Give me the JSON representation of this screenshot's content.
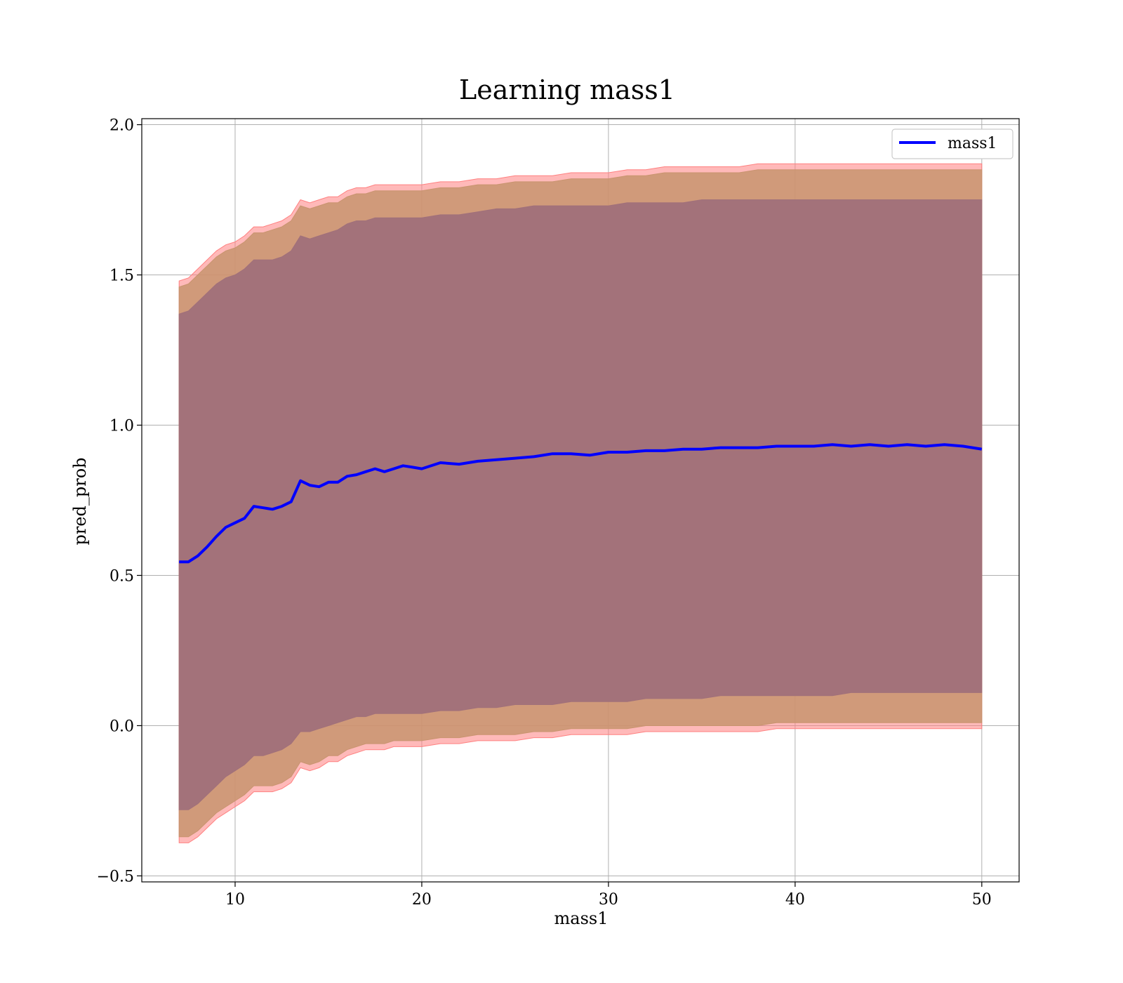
{
  "chart_data": {
    "type": "line",
    "title": "Learning mass1",
    "xlabel": "mass1",
    "ylabel": "pred_prob",
    "xlim": [
      5,
      52
    ],
    "ylim": [
      -0.52,
      2.02
    ],
    "xticks": [
      10,
      20,
      30,
      40,
      50
    ],
    "xtick_labels": [
      "10",
      "20",
      "30",
      "40",
      "50"
    ],
    "yticks": [
      -0.5,
      0.0,
      0.5,
      1.0,
      1.5,
      2.0
    ],
    "ytick_labels": [
      "−0.5",
      "0.0",
      "0.5",
      "1.0",
      "1.5",
      "2.0"
    ],
    "grid": true,
    "legend": {
      "position": "top-right",
      "entries": [
        "mass1"
      ]
    },
    "colors": {
      "line": "#0000ff",
      "band_outer": "#ff8080",
      "band_middle": "#c8946f",
      "band_inner": "#a0707a",
      "grid": "#b0b0b0"
    },
    "x": [
      7.0,
      7.5,
      8.0,
      8.5,
      9.0,
      9.5,
      10.0,
      10.5,
      11.0,
      11.5,
      12.0,
      12.5,
      13.0,
      13.5,
      14.0,
      14.5,
      15.0,
      15.5,
      16.0,
      16.5,
      17.0,
      17.5,
      18.0,
      18.5,
      19.0,
      19.5,
      20.0,
      21.0,
      22.0,
      23.0,
      24.0,
      25.0,
      26.0,
      27.0,
      28.0,
      29.0,
      30.0,
      31.0,
      32.0,
      33.0,
      34.0,
      35.0,
      36.0,
      37.0,
      38.0,
      39.0,
      40.0,
      41.0,
      42.0,
      43.0,
      44.0,
      45.0,
      46.0,
      47.0,
      48.0,
      49.0,
      50.0
    ],
    "series": [
      {
        "name": "mass1",
        "values": [
          0.545,
          0.545,
          0.565,
          0.595,
          0.63,
          0.66,
          0.675,
          0.69,
          0.73,
          0.725,
          0.72,
          0.73,
          0.745,
          0.815,
          0.8,
          0.795,
          0.81,
          0.81,
          0.83,
          0.835,
          0.845,
          0.855,
          0.845,
          0.855,
          0.865,
          0.86,
          0.855,
          0.875,
          0.87,
          0.88,
          0.885,
          0.89,
          0.895,
          0.905,
          0.905,
          0.9,
          0.91,
          0.91,
          0.915,
          0.915,
          0.92,
          0.92,
          0.925,
          0.925,
          0.925,
          0.93,
          0.93,
          0.93,
          0.935,
          0.93,
          0.935,
          0.93,
          0.935,
          0.93,
          0.935,
          0.93,
          0.92
        ]
      }
    ],
    "bands": [
      {
        "upper": [
          1.48,
          1.49,
          1.52,
          1.55,
          1.58,
          1.6,
          1.61,
          1.63,
          1.66,
          1.66,
          1.67,
          1.68,
          1.7,
          1.75,
          1.74,
          1.75,
          1.76,
          1.76,
          1.78,
          1.79,
          1.79,
          1.8,
          1.8,
          1.8,
          1.8,
          1.8,
          1.8,
          1.81,
          1.81,
          1.82,
          1.82,
          1.83,
          1.83,
          1.83,
          1.84,
          1.84,
          1.84,
          1.85,
          1.85,
          1.86,
          1.86,
          1.86,
          1.86,
          1.86,
          1.87,
          1.87,
          1.87,
          1.87,
          1.87,
          1.87,
          1.87,
          1.87,
          1.87,
          1.87,
          1.87,
          1.87,
          1.87
        ],
        "lower": [
          -0.39,
          -0.39,
          -0.37,
          -0.34,
          -0.31,
          -0.29,
          -0.27,
          -0.25,
          -0.22,
          -0.22,
          -0.22,
          -0.21,
          -0.19,
          -0.14,
          -0.15,
          -0.14,
          -0.12,
          -0.12,
          -0.1,
          -0.09,
          -0.08,
          -0.08,
          -0.08,
          -0.07,
          -0.07,
          -0.07,
          -0.07,
          -0.06,
          -0.06,
          -0.05,
          -0.05,
          -0.05,
          -0.04,
          -0.04,
          -0.03,
          -0.03,
          -0.03,
          -0.03,
          -0.02,
          -0.02,
          -0.02,
          -0.02,
          -0.02,
          -0.02,
          -0.02,
          -0.01,
          -0.01,
          -0.01,
          -0.01,
          -0.01,
          -0.01,
          -0.01,
          -0.01,
          -0.01,
          -0.01,
          -0.01,
          -0.01
        ]
      },
      {
        "upper": [
          1.46,
          1.47,
          1.5,
          1.53,
          1.56,
          1.58,
          1.59,
          1.61,
          1.64,
          1.64,
          1.65,
          1.66,
          1.68,
          1.73,
          1.72,
          1.73,
          1.74,
          1.74,
          1.76,
          1.77,
          1.77,
          1.78,
          1.78,
          1.78,
          1.78,
          1.78,
          1.78,
          1.79,
          1.79,
          1.8,
          1.8,
          1.81,
          1.81,
          1.81,
          1.82,
          1.82,
          1.82,
          1.83,
          1.83,
          1.84,
          1.84,
          1.84,
          1.84,
          1.84,
          1.85,
          1.85,
          1.85,
          1.85,
          1.85,
          1.85,
          1.85,
          1.85,
          1.85,
          1.85,
          1.85,
          1.85,
          1.85
        ],
        "lower": [
          -0.37,
          -0.37,
          -0.35,
          -0.32,
          -0.29,
          -0.27,
          -0.25,
          -0.23,
          -0.2,
          -0.2,
          -0.2,
          -0.19,
          -0.17,
          -0.12,
          -0.13,
          -0.12,
          -0.1,
          -0.1,
          -0.08,
          -0.07,
          -0.06,
          -0.06,
          -0.06,
          -0.05,
          -0.05,
          -0.05,
          -0.05,
          -0.04,
          -0.04,
          -0.03,
          -0.03,
          -0.03,
          -0.02,
          -0.02,
          -0.01,
          -0.01,
          -0.01,
          -0.01,
          0.0,
          0.0,
          0.0,
          0.0,
          0.0,
          0.0,
          0.0,
          0.01,
          0.01,
          0.01,
          0.01,
          0.01,
          0.01,
          0.01,
          0.01,
          0.01,
          0.01,
          0.01,
          0.01
        ]
      },
      {
        "upper": [
          1.37,
          1.38,
          1.41,
          1.44,
          1.47,
          1.49,
          1.5,
          1.52,
          1.55,
          1.55,
          1.55,
          1.56,
          1.58,
          1.63,
          1.62,
          1.63,
          1.64,
          1.65,
          1.67,
          1.68,
          1.68,
          1.69,
          1.69,
          1.69,
          1.69,
          1.69,
          1.69,
          1.7,
          1.7,
          1.71,
          1.72,
          1.72,
          1.73,
          1.73,
          1.73,
          1.73,
          1.73,
          1.74,
          1.74,
          1.74,
          1.74,
          1.75,
          1.75,
          1.75,
          1.75,
          1.75,
          1.75,
          1.75,
          1.75,
          1.75,
          1.75,
          1.75,
          1.75,
          1.75,
          1.75,
          1.75,
          1.75
        ],
        "lower": [
          -0.28,
          -0.28,
          -0.26,
          -0.23,
          -0.2,
          -0.17,
          -0.15,
          -0.13,
          -0.1,
          -0.1,
          -0.09,
          -0.08,
          -0.06,
          -0.02,
          -0.02,
          -0.01,
          0.0,
          0.01,
          0.02,
          0.03,
          0.03,
          0.04,
          0.04,
          0.04,
          0.04,
          0.04,
          0.04,
          0.05,
          0.05,
          0.06,
          0.06,
          0.07,
          0.07,
          0.07,
          0.08,
          0.08,
          0.08,
          0.08,
          0.09,
          0.09,
          0.09,
          0.09,
          0.1,
          0.1,
          0.1,
          0.1,
          0.1,
          0.1,
          0.1,
          0.11,
          0.11,
          0.11,
          0.11,
          0.11,
          0.11,
          0.11,
          0.11
        ]
      }
    ]
  }
}
